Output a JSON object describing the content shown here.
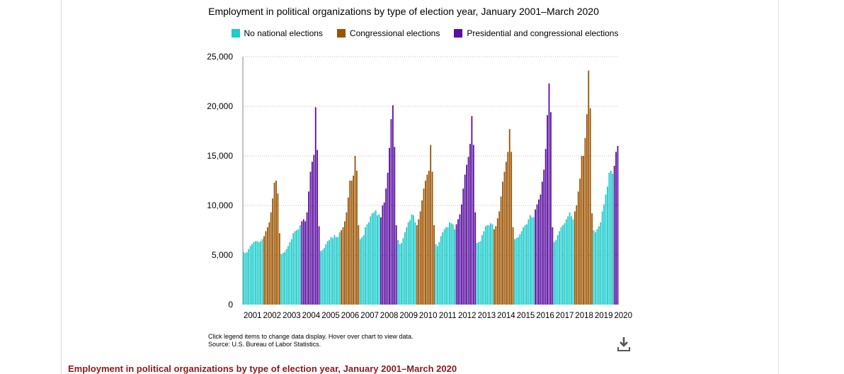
{
  "chart_data": {
    "type": "bar",
    "title": "Employment in political organizations by type of election year, January 2001–March 2020",
    "legend": [
      {
        "label": "No national elections",
        "color": "#1fcbcb"
      },
      {
        "label": "Congressional elections",
        "color": "#9c5300"
      },
      {
        "label": "Presidential and congressional elections",
        "color": "#5a0fa0"
      }
    ],
    "ylim": [
      0,
      25000
    ],
    "yticks": [
      "0",
      "5,000",
      "10,000",
      "15,000",
      "20,000",
      "25,000"
    ],
    "ytick_values": [
      0,
      5000,
      10000,
      15000,
      20000,
      25000
    ],
    "x_categories": [
      "2001",
      "2002",
      "2003",
      "2004",
      "2005",
      "2006",
      "2007",
      "2008",
      "2009",
      "2010",
      "2011",
      "2012",
      "2013",
      "2014",
      "2015",
      "2016",
      "2017",
      "2018",
      "2019",
      "2020"
    ],
    "grid": true,
    "series": [
      {
        "name": "No national elections",
        "year": 2001,
        "values": [
          5300,
          5200,
          5300,
          5600,
          5900,
          6100,
          6300,
          6400,
          6400,
          6300,
          6400,
          6600
        ]
      },
      {
        "name": "Congressional elections",
        "year": 2002,
        "values": [
          6900,
          7400,
          7800,
          8300,
          9300,
          10700,
          12300,
          12500,
          11200,
          7200
        ]
      },
      {
        "name": "No national elections",
        "year": 2003,
        "values": [
          5100,
          5200,
          5300,
          5600,
          5900,
          6300,
          6600,
          7200,
          7400,
          7500,
          7600,
          8000
        ]
      },
      {
        "name": "Presidential and congressional elections",
        "year": 2004,
        "values": [
          8400,
          8600,
          8400,
          9300,
          11400,
          13400,
          14400,
          15100,
          19900,
          15600,
          7900
        ]
      },
      {
        "name": "No national elections",
        "year": 2005,
        "values": [
          5400,
          5500,
          5700,
          6100,
          6400,
          6500,
          6800,
          6700,
          7000,
          6800,
          6800,
          7300
        ]
      },
      {
        "name": "Congressional elections",
        "year": 2006,
        "values": [
          7500,
          7800,
          8400,
          9300,
          10800,
          12500,
          12500,
          13000,
          15000,
          13500,
          8000
        ]
      },
      {
        "name": "No national elections",
        "year": 2007,
        "values": [
          6600,
          6800,
          7000,
          7800,
          8100,
          8300,
          8900,
          9200,
          9300,
          9500,
          9000,
          9100
        ]
      },
      {
        "name": "Presidential and congressional elections",
        "year": 2008,
        "values": [
          8800,
          10000,
          10300,
          11700,
          13300,
          15800,
          18700,
          20100,
          15900,
          8000
        ]
      },
      {
        "name": "No national elections",
        "year": 2009,
        "values": [
          6500,
          6100,
          6200,
          6700,
          7300,
          7800,
          8300,
          8500,
          9100,
          9000,
          8300
        ]
      },
      {
        "name": "Congressional elections",
        "year": 2010,
        "values": [
          8000,
          8600,
          9400,
          10500,
          11700,
          12500,
          13100,
          13500,
          16100,
          13400,
          8000
        ]
      },
      {
        "name": "No national elections",
        "year": 2011,
        "values": [
          6100,
          5900,
          6300,
          6900,
          7300,
          7600,
          7800,
          7800,
          8300,
          8200,
          8100,
          7600
        ]
      },
      {
        "name": "Presidential and congressional elections",
        "year": 2012,
        "values": [
          8100,
          8600,
          9100,
          10100,
          11700,
          13100,
          14100,
          14900,
          16200,
          19000,
          16100,
          9300
        ]
      },
      {
        "name": "No national elections",
        "year": 2013,
        "values": [
          6200,
          6300,
          6400,
          7000,
          7400,
          7900,
          8000,
          8000,
          8200,
          8100
        ]
      },
      {
        "name": "Congressional elections",
        "year": 2014,
        "values": [
          7600,
          7900,
          8700,
          9400,
          10900,
          12400,
          13400,
          14400,
          15400,
          17700,
          15400,
          7800
        ]
      },
      {
        "name": "No national elections",
        "year": 2015,
        "values": [
          6600,
          6700,
          6800,
          7100,
          7400,
          7800,
          8000,
          8100,
          8600,
          9000,
          8800,
          8800
        ]
      },
      {
        "name": "Presidential and congressional elections",
        "year": 2016,
        "values": [
          9600,
          10100,
          10600,
          11100,
          12400,
          13600,
          15700,
          19100,
          22300,
          19400,
          7800
        ]
      },
      {
        "name": "No national elections",
        "year": 2017,
        "values": [
          6300,
          6500,
          7000,
          7400,
          7800,
          8000,
          8200,
          8600,
          8900,
          9300,
          8900,
          8600
        ]
      },
      {
        "name": "Congressional elections",
        "year": 2018,
        "values": [
          9400,
          10000,
          11400,
          12700,
          15000,
          15000,
          16800,
          19200,
          23600,
          19800,
          9200
        ]
      },
      {
        "name": "No national elections",
        "year": 2019,
        "values": [
          7500,
          7300,
          7600,
          7900,
          8300,
          9400,
          10100,
          11100,
          11900,
          13300,
          13500,
          13200
        ]
      },
      {
        "name": "Presidential and congressional elections",
        "year": 2020,
        "values": [
          14000,
          15400,
          16000
        ]
      }
    ]
  },
  "notes": {
    "line1": "Click legend items to change data display. Hover over chart to view data.",
    "line2": "Source: U.S. Bureau of Labor Statistics."
  },
  "icons": {
    "download": "download-icon"
  },
  "caption": "Employment in political organizations by type of election year, January 2001–March 2020"
}
